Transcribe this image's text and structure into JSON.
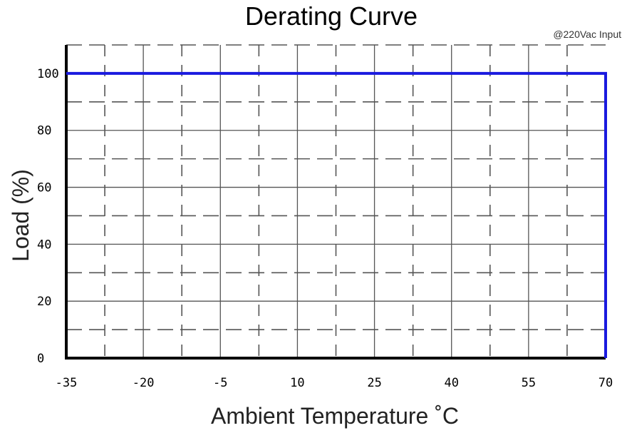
{
  "chart_data": {
    "type": "line",
    "title": "Derating Curve",
    "subtitle": "@220Vac Input",
    "xlabel": "Ambient Temperature ˚C",
    "ylabel": "Load (%)",
    "xlim": [
      -35,
      70
    ],
    "ylim": [
      0,
      110
    ],
    "x_ticks": [
      -35,
      -20,
      -5,
      10,
      25,
      40,
      55,
      70
    ],
    "x_tick_labels": [
      "-35",
      "-20",
      "-5",
      "10",
      "25",
      "40",
      "55",
      "70"
    ],
    "y_ticks": [
      0,
      20,
      40,
      60,
      80,
      100
    ],
    "y_tick_labels": [
      "0",
      "20",
      "40",
      "60",
      "80",
      "100"
    ],
    "grid": true,
    "series": [
      {
        "x": [
          -35,
          70,
          70
        ],
        "y": [
          100,
          100,
          0
        ],
        "color": "#1a1adf"
      }
    ]
  }
}
